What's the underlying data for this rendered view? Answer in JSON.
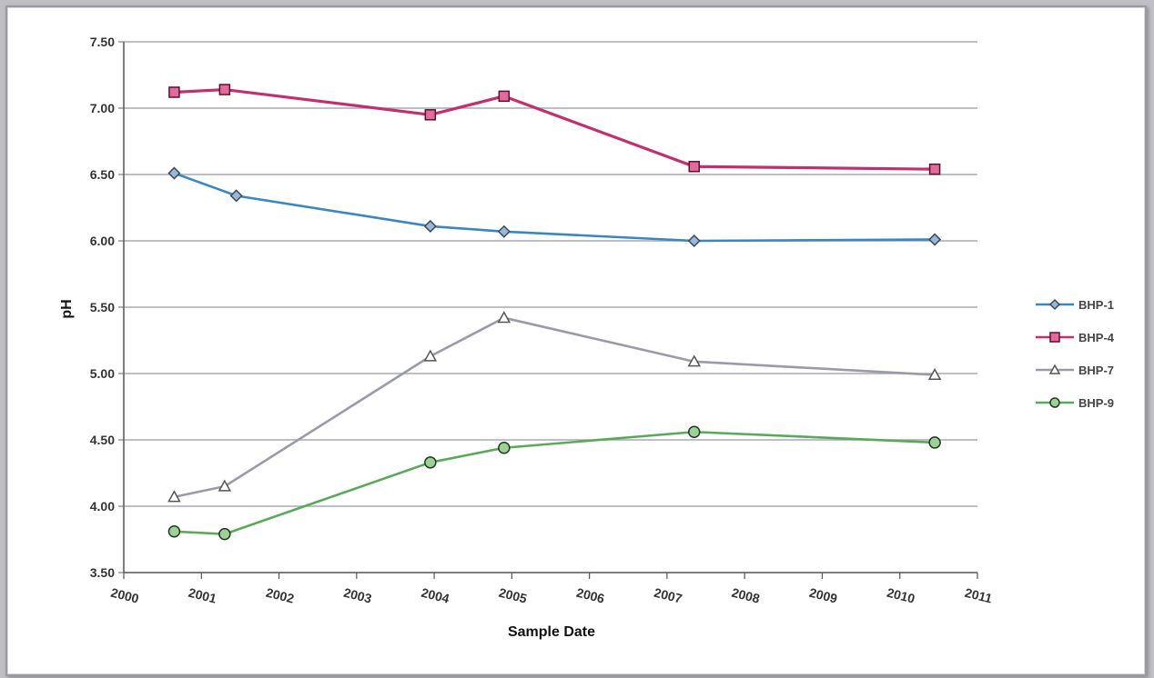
{
  "chart_data": {
    "type": "line",
    "title": "",
    "xlabel": "Sample Date",
    "ylabel": "pH",
    "xlim": [
      2000,
      2011
    ],
    "ylim": [
      3.5,
      7.5
    ],
    "x_ticks": [
      "2000",
      "2001",
      "2002",
      "2003",
      "2004",
      "2005",
      "2006",
      "2007",
      "2008",
      "2009",
      "2010",
      "2011"
    ],
    "y_ticks": [
      "3.50",
      "4.00",
      "4.50",
      "5.00",
      "5.50",
      "6.00",
      "6.50",
      "7.00",
      "7.50"
    ],
    "grid": "horizontal",
    "legend_position": "right",
    "series": [
      {
        "name": "BHP-1",
        "color": "#3c86c0",
        "marker": "diamond",
        "marker_fill": "#9ab8d6",
        "x": [
          2000.65,
          2001.45,
          2003.95,
          2004.9,
          2007.35,
          2010.45
        ],
        "y": [
          6.51,
          6.34,
          6.11,
          6.07,
          6.0,
          6.01
        ]
      },
      {
        "name": "BHP-4",
        "color": "#c0306e",
        "marker": "square",
        "marker_fill": "#e36a9c",
        "x": [
          2000.65,
          2001.3,
          2003.95,
          2004.9,
          2007.35,
          2010.45
        ],
        "y": [
          7.12,
          7.14,
          6.95,
          7.09,
          6.56,
          6.54
        ]
      },
      {
        "name": "BHP-7",
        "color": "#9b9ba8",
        "marker": "triangle",
        "marker_fill": "#ffffff",
        "x": [
          2000.65,
          2001.3,
          2003.95,
          2004.9,
          2007.35,
          2010.45
        ],
        "y": [
          4.07,
          4.15,
          5.13,
          5.42,
          5.09,
          4.99
        ]
      },
      {
        "name": "BHP-9",
        "color": "#5aa85a",
        "marker": "circle",
        "marker_fill": "#9fd09a",
        "x": [
          2000.65,
          2001.3,
          2003.95,
          2004.9,
          2007.35,
          2010.45
        ],
        "y": [
          3.81,
          3.79,
          4.33,
          4.44,
          4.56,
          4.48
        ]
      }
    ]
  }
}
